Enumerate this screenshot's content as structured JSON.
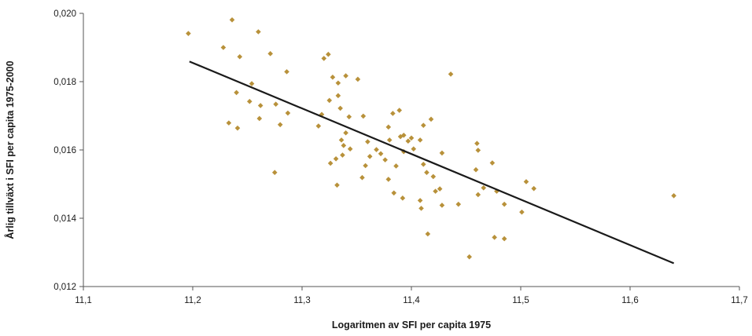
{
  "chart_data": {
    "type": "scatter",
    "xlabel": "Logaritmen av SFI per capita 1975",
    "ylabel": "Årlig tillväxt i SFI per capita 1975-2000",
    "xlim": [
      11.1,
      11.7
    ],
    "ylim": [
      0.012,
      0.02
    ],
    "x_ticks": [
      "11,1",
      "11,2",
      "11,3",
      "11,4",
      "11,5",
      "11,6",
      "11,7"
    ],
    "y_ticks": [
      "0,012",
      "0,014",
      "0,016",
      "0,018",
      "0,020"
    ],
    "grid": false,
    "point_color": "#b8913a",
    "trend_color": "#1a1a1a",
    "trendline": {
      "x": [
        11.197,
        11.64
      ],
      "y": [
        0.01859,
        0.01268
      ]
    },
    "points": [
      [
        11.196,
        0.01941
      ],
      [
        11.228,
        0.019
      ],
      [
        11.236,
        0.01981
      ],
      [
        11.243,
        0.01873
      ],
      [
        11.26,
        0.01946
      ],
      [
        11.271,
        0.01882
      ],
      [
        11.286,
        0.01829
      ],
      [
        11.254,
        0.01794
      ],
      [
        11.24,
        0.01768
      ],
      [
        11.252,
        0.01742
      ],
      [
        11.262,
        0.0173
      ],
      [
        11.276,
        0.01734
      ],
      [
        11.287,
        0.01708
      ],
      [
        11.261,
        0.01692
      ],
      [
        11.233,
        0.01679
      ],
      [
        11.241,
        0.01664
      ],
      [
        11.28,
        0.01674
      ],
      [
        11.275,
        0.01534
      ],
      [
        11.32,
        0.01868
      ],
      [
        11.324,
        0.0188
      ],
      [
        11.328,
        0.01813
      ],
      [
        11.34,
        0.01817
      ],
      [
        11.351,
        0.01807
      ],
      [
        11.333,
        0.01796
      ],
      [
        11.325,
        0.01745
      ],
      [
        11.333,
        0.01759
      ],
      [
        11.335,
        0.01722
      ],
      [
        11.343,
        0.01697
      ],
      [
        11.318,
        0.01704
      ],
      [
        11.315,
        0.0167
      ],
      [
        11.34,
        0.0165
      ],
      [
        11.356,
        0.01699
      ],
      [
        11.336,
        0.01629
      ],
      [
        11.36,
        0.01624
      ],
      [
        11.338,
        0.01613
      ],
      [
        11.344,
        0.01603
      ],
      [
        11.326,
        0.01561
      ],
      [
        11.331,
        0.01574
      ],
      [
        11.337,
        0.01585
      ],
      [
        11.332,
        0.01497
      ],
      [
        11.355,
        0.01519
      ],
      [
        11.358,
        0.01554
      ],
      [
        11.362,
        0.01581
      ],
      [
        11.368,
        0.01601
      ],
      [
        11.372,
        0.01589
      ],
      [
        11.376,
        0.01571
      ],
      [
        11.38,
        0.01629
      ],
      [
        11.379,
        0.01667
      ],
      [
        11.383,
        0.01707
      ],
      [
        11.389,
        0.01716
      ],
      [
        11.39,
        0.01639
      ],
      [
        11.393,
        0.01643
      ],
      [
        11.397,
        0.01626
      ],
      [
        11.4,
        0.01635
      ],
      [
        11.402,
        0.01603
      ],
      [
        11.393,
        0.01595
      ],
      [
        11.386,
        0.01553
      ],
      [
        11.379,
        0.01514
      ],
      [
        11.384,
        0.01474
      ],
      [
        11.392,
        0.01459
      ],
      [
        11.408,
        0.01629
      ],
      [
        11.411,
        0.01672
      ],
      [
        11.418,
        0.0169
      ],
      [
        11.436,
        0.01822
      ],
      [
        11.411,
        0.01558
      ],
      [
        11.414,
        0.01534
      ],
      [
        11.42,
        0.01522
      ],
      [
        11.428,
        0.01591
      ],
      [
        11.422,
        0.01479
      ],
      [
        11.426,
        0.01486
      ],
      [
        11.408,
        0.01452
      ],
      [
        11.409,
        0.01429
      ],
      [
        11.428,
        0.01438
      ],
      [
        11.443,
        0.01441
      ],
      [
        11.415,
        0.01354
      ],
      [
        11.453,
        0.01287
      ],
      [
        11.46,
        0.01619
      ],
      [
        11.461,
        0.01599
      ],
      [
        11.459,
        0.01542
      ],
      [
        11.474,
        0.01562
      ],
      [
        11.461,
        0.01469
      ],
      [
        11.466,
        0.01489
      ],
      [
        11.478,
        0.01479
      ],
      [
        11.485,
        0.01441
      ],
      [
        11.476,
        0.01344
      ],
      [
        11.485,
        0.0134
      ],
      [
        11.501,
        0.01418
      ],
      [
        11.505,
        0.01507
      ],
      [
        11.512,
        0.01487
      ],
      [
        11.64,
        0.01466
      ]
    ]
  }
}
